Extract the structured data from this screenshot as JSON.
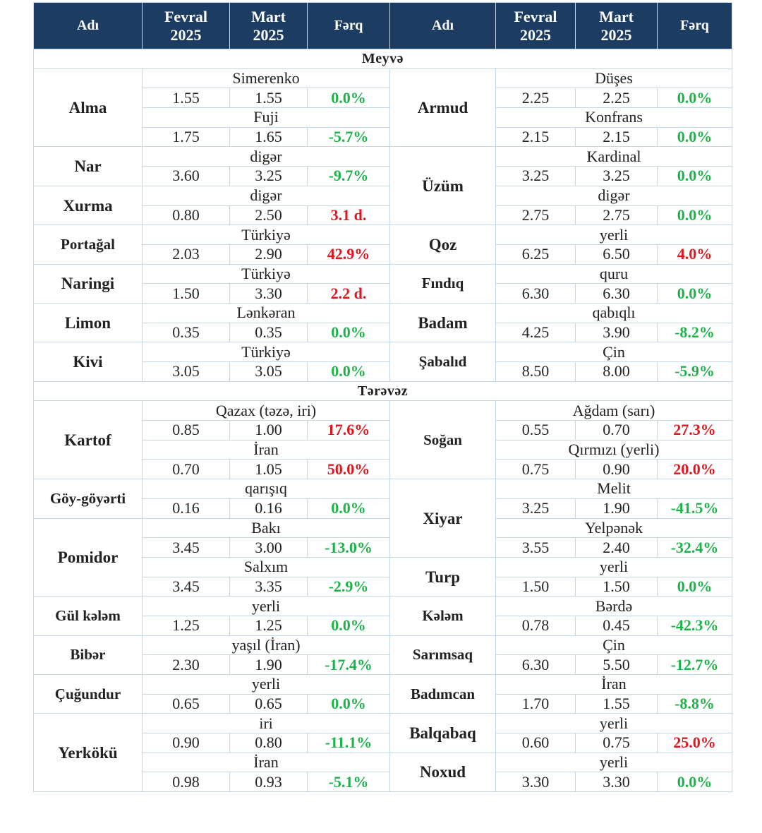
{
  "header": {
    "name": "Adı",
    "feb_line1": "Fevral",
    "feb_line2": "2025",
    "mar_line1": "Mart",
    "mar_line2": "2025",
    "diff": "Fərq"
  },
  "sections": {
    "fruits": "Meyvə",
    "vegetables": "Tərəvəz"
  },
  "colors": {
    "header_bg": "#1d3c61",
    "increase": "#e0161e",
    "decrease": "#1db34a",
    "grid": "#c3d9e9"
  },
  "left": {
    "alma": {
      "name": "Alma",
      "v1": {
        "variety": "Simerenko",
        "feb": "1.55",
        "mar": "1.55",
        "diff": "0.0%"
      },
      "v2": {
        "variety": "Fuji",
        "feb": "1.75",
        "mar": "1.65",
        "diff": "-5.7%"
      }
    },
    "nar": {
      "name": "Nar",
      "variety": "digər",
      "feb": "3.60",
      "mar": "3.25",
      "diff": "-9.7%"
    },
    "xurma": {
      "name": "Xurma",
      "variety": "digər",
      "feb": "0.80",
      "mar": "2.50",
      "diff": "3.1 d."
    },
    "portagal": {
      "name": "Portağal",
      "variety": "Türkiyə",
      "feb": "2.03",
      "mar": "2.90",
      "diff": "42.9%"
    },
    "naringi": {
      "name": "Naringi",
      "variety": "Türkiyə",
      "feb": "1.50",
      "mar": "3.30",
      "diff": "2.2 d."
    },
    "limon": {
      "name": "Limon",
      "variety": "Lənkəran",
      "feb": "0.35",
      "mar": "0.35",
      "diff": "0.0%"
    },
    "kivi": {
      "name": "Kivi",
      "variety": "Türkiyə",
      "feb": "3.05",
      "mar": "3.05",
      "diff": "0.0%"
    },
    "kartof": {
      "name": "Kartof",
      "v1": {
        "variety": "Qazax (təzə, iri)",
        "feb": "0.85",
        "mar": "1.00",
        "diff": "17.6%"
      },
      "v2": {
        "variety": "İran",
        "feb": "0.70",
        "mar": "1.05",
        "diff": "50.0%"
      }
    },
    "goy": {
      "name": "Göy-göyərti",
      "variety": "qarışıq",
      "feb": "0.16",
      "mar": "0.16",
      "diff": "0.0%"
    },
    "pomidor": {
      "name": "Pomidor",
      "v1": {
        "variety": "Bakı",
        "feb": "3.45",
        "mar": "3.00",
        "diff": "-13.0%"
      },
      "v2": {
        "variety": "Salxım",
        "feb": "3.45",
        "mar": "3.35",
        "diff": "-2.9%"
      }
    },
    "gulkelem": {
      "name": "Gül kələm",
      "variety": "yerli",
      "feb": "1.25",
      "mar": "1.25",
      "diff": "0.0%"
    },
    "biber": {
      "name": "Bibər",
      "variety": "yaşıl (İran)",
      "feb": "2.30",
      "mar": "1.90",
      "diff": "-17.4%"
    },
    "cugundur": {
      "name": "Çuğundur",
      "variety": "yerli",
      "feb": "0.65",
      "mar": "0.65",
      "diff": "0.0%"
    },
    "yerkoku": {
      "name": "Yerkökü",
      "v1": {
        "variety": "iri",
        "feb": "0.90",
        "mar": "0.80",
        "diff": "-11.1%"
      },
      "v2": {
        "variety": "İran",
        "feb": "0.98",
        "mar": "0.93",
        "diff": "-5.1%"
      }
    }
  },
  "right": {
    "armud": {
      "name": "Armud",
      "v1": {
        "variety": "Düşes",
        "feb": "2.25",
        "mar": "2.25",
        "diff": "0.0%"
      },
      "v2": {
        "variety": "Konfrans",
        "feb": "2.15",
        "mar": "2.15",
        "diff": "0.0%"
      }
    },
    "uzum": {
      "name": "Üzüm",
      "v1": {
        "variety": "Kardinal",
        "feb": "3.25",
        "mar": "3.25",
        "diff": "0.0%"
      },
      "v2": {
        "variety": "digər",
        "feb": "2.75",
        "mar": "2.75",
        "diff": "0.0%"
      }
    },
    "qoz": {
      "name": "Qoz",
      "variety": "yerli",
      "feb": "6.25",
      "mar": "6.50",
      "diff": "4.0%"
    },
    "findiq": {
      "name": "Fındıq",
      "variety": "quru",
      "feb": "6.30",
      "mar": "6.30",
      "diff": "0.0%"
    },
    "badam": {
      "name": "Badam",
      "variety": "qabıqlı",
      "feb": "4.25",
      "mar": "3.90",
      "diff": "-8.2%"
    },
    "sabalid": {
      "name": "Şabalıd",
      "variety": "Çin",
      "feb": "8.50",
      "mar": "8.00",
      "diff": "-5.9%"
    },
    "sogan": {
      "name": "Soğan",
      "v1": {
        "variety": "Ağdam (sarı)",
        "feb": "0.55",
        "mar": "0.70",
        "diff": "27.3%"
      },
      "v2": {
        "variety": "Qırmızı (yerli)",
        "feb": "0.75",
        "mar": "0.90",
        "diff": "20.0%"
      }
    },
    "xiyar": {
      "name": "Xiyar",
      "v1": {
        "variety": "Melit",
        "feb": "3.25",
        "mar": "1.90",
        "diff": "-41.5%"
      },
      "v2": {
        "variety": "Yelpənək",
        "feb": "3.55",
        "mar": "2.40",
        "diff": "-32.4%"
      }
    },
    "turp": {
      "name": "Turp",
      "variety": "yerli",
      "feb": "1.50",
      "mar": "1.50",
      "diff": "0.0%"
    },
    "kelem": {
      "name": "Kələm",
      "variety": "Bərdə",
      "feb": "0.78",
      "mar": "0.45",
      "diff": "-42.3%"
    },
    "sarimsaq": {
      "name": "Sarımsaq",
      "variety": "Çin",
      "feb": "6.30",
      "mar": "5.50",
      "diff": "-12.7%"
    },
    "badimcan": {
      "name": "Badımcan",
      "variety": "İran",
      "feb": "1.70",
      "mar": "1.55",
      "diff": "-8.8%"
    },
    "balqabaq": {
      "name": "Balqabaq",
      "variety": "yerli",
      "feb": "0.60",
      "mar": "0.75",
      "diff": "25.0%"
    },
    "noxud": {
      "name": "Noxud",
      "variety": "yerli",
      "feb": "3.30",
      "mar": "3.30",
      "diff": "0.0%"
    }
  }
}
